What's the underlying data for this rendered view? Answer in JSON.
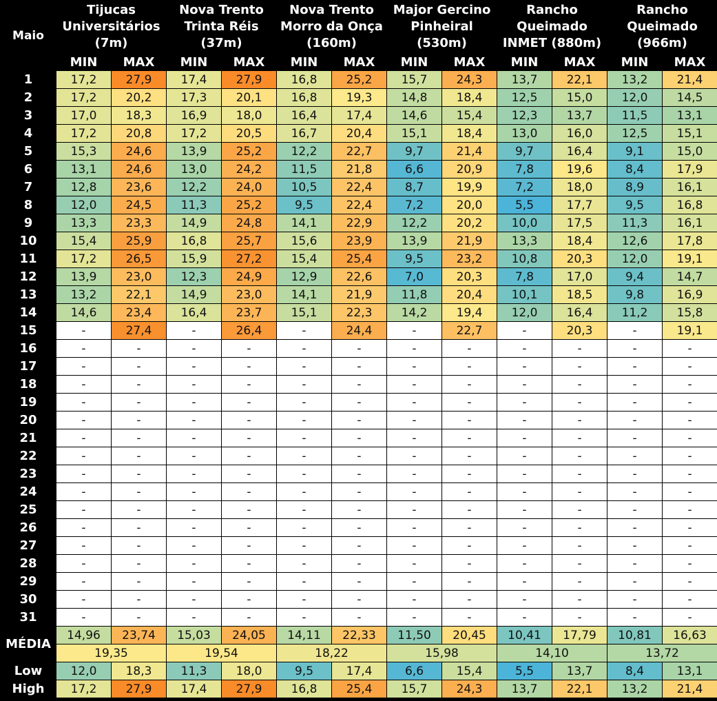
{
  "row_header_label": "Maio",
  "stations": [
    {
      "name_lines": [
        "Tijucas",
        "Universitários",
        "(7m)"
      ]
    },
    {
      "name_lines": [
        "Nova Trento",
        "Trinta Réis",
        "(37m)"
      ]
    },
    {
      "name_lines": [
        "Nova Trento",
        "Morro da Onça",
        "(160m)"
      ]
    },
    {
      "name_lines": [
        "Major Gercino",
        "Pinheiral",
        "(530m)"
      ]
    },
    {
      "name_lines": [
        "Rancho",
        "Queimado",
        "INMET (880m)"
      ]
    },
    {
      "name_lines": [
        "Rancho",
        "Queimado",
        "(966m)"
      ]
    }
  ],
  "min_label": "MIN",
  "max_label": "MAX",
  "days": [
    "1",
    "2",
    "3",
    "4",
    "5",
    "6",
    "7",
    "8",
    "9",
    "10",
    "11",
    "12",
    "13",
    "14",
    "15",
    "16",
    "17",
    "18",
    "19",
    "20",
    "21",
    "22",
    "23",
    "24",
    "25",
    "26",
    "27",
    "28",
    "29",
    "30",
    "31"
  ],
  "rows": [
    [
      "17,2",
      "27,9",
      "17,4",
      "27,9",
      "16,8",
      "25,2",
      "15,7",
      "24,3",
      "13,7",
      "22,1",
      "13,2",
      "21,4"
    ],
    [
      "17,2",
      "20,2",
      "17,3",
      "20,1",
      "16,8",
      "19,3",
      "14,8",
      "18,4",
      "12,5",
      "15,0",
      "12,0",
      "14,5"
    ],
    [
      "17,0",
      "18,3",
      "16,9",
      "18,0",
      "16,4",
      "17,4",
      "14,6",
      "15,4",
      "12,3",
      "13,7",
      "11,5",
      "13,1"
    ],
    [
      "17,2",
      "20,8",
      "17,2",
      "20,5",
      "16,7",
      "20,4",
      "15,1",
      "18,4",
      "13,0",
      "16,0",
      "12,5",
      "15,1"
    ],
    [
      "15,3",
      "24,6",
      "13,9",
      "25,2",
      "12,2",
      "22,7",
      "9,7",
      "21,4",
      "9,7",
      "16,4",
      "9,1",
      "15,0"
    ],
    [
      "13,1",
      "24,6",
      "13,0",
      "24,2",
      "11,5",
      "21,8",
      "6,6",
      "20,9",
      "7,8",
      "19,6",
      "8,4",
      "17,9"
    ],
    [
      "12,8",
      "23,6",
      "12,2",
      "24,0",
      "10,5",
      "22,4",
      "8,7",
      "19,9",
      "7,2",
      "18,0",
      "8,9",
      "16,1"
    ],
    [
      "12,0",
      "24,5",
      "11,3",
      "25,2",
      "9,5",
      "22,4",
      "7,2",
      "20,0",
      "5,5",
      "17,7",
      "9,5",
      "16,8"
    ],
    [
      "13,3",
      "23,3",
      "14,9",
      "24,8",
      "14,1",
      "22,9",
      "12,2",
      "20,2",
      "10,0",
      "17,5",
      "11,3",
      "16,1"
    ],
    [
      "15,4",
      "25,9",
      "16,8",
      "25,7",
      "15,6",
      "23,9",
      "13,9",
      "21,9",
      "13,3",
      "18,4",
      "12,6",
      "17,8"
    ],
    [
      "17,2",
      "26,5",
      "15,9",
      "27,2",
      "15,4",
      "25,4",
      "9,5",
      "23,2",
      "10,8",
      "20,3",
      "12,0",
      "19,1"
    ],
    [
      "13,9",
      "23,0",
      "12,3",
      "24,9",
      "12,9",
      "22,6",
      "7,0",
      "20,3",
      "7,8",
      "17,0",
      "9,4",
      "14,7"
    ],
    [
      "13,2",
      "22,1",
      "14,9",
      "23,0",
      "14,1",
      "21,9",
      "11,8",
      "20,4",
      "10,1",
      "18,5",
      "9,8",
      "16,9"
    ],
    [
      "14,6",
      "23,4",
      "16,4",
      "23,7",
      "15,1",
      "22,3",
      "14,2",
      "19,4",
      "12,0",
      "16,4",
      "11,2",
      "15,8"
    ],
    [
      "-",
      "27,4",
      "-",
      "26,4",
      "-",
      "24,4",
      "-",
      "22,7",
      "-",
      "20,3",
      "-",
      "19,1"
    ],
    [
      "-",
      "-",
      "-",
      "-",
      "-",
      "-",
      "-",
      "-",
      "-",
      "-",
      "-",
      "-"
    ],
    [
      "-",
      "-",
      "-",
      "-",
      "-",
      "-",
      "-",
      "-",
      "-",
      "-",
      "-",
      "-"
    ],
    [
      "-",
      "-",
      "-",
      "-",
      "-",
      "-",
      "-",
      "-",
      "-",
      "-",
      "-",
      "-"
    ],
    [
      "-",
      "-",
      "-",
      "-",
      "-",
      "-",
      "-",
      "-",
      "-",
      "-",
      "-",
      "-"
    ],
    [
      "-",
      "-",
      "-",
      "-",
      "-",
      "-",
      "-",
      "-",
      "-",
      "-",
      "-",
      "-"
    ],
    [
      "-",
      "-",
      "-",
      "-",
      "-",
      "-",
      "-",
      "-",
      "-",
      "-",
      "-",
      "-"
    ],
    [
      "-",
      "-",
      "-",
      "-",
      "-",
      "-",
      "-",
      "-",
      "-",
      "-",
      "-",
      "-"
    ],
    [
      "-",
      "-",
      "-",
      "-",
      "-",
      "-",
      "-",
      "-",
      "-",
      "-",
      "-",
      "-"
    ],
    [
      "-",
      "-",
      "-",
      "-",
      "-",
      "-",
      "-",
      "-",
      "-",
      "-",
      "-",
      "-"
    ],
    [
      "-",
      "-",
      "-",
      "-",
      "-",
      "-",
      "-",
      "-",
      "-",
      "-",
      "-",
      "-"
    ],
    [
      "-",
      "-",
      "-",
      "-",
      "-",
      "-",
      "-",
      "-",
      "-",
      "-",
      "-",
      "-"
    ],
    [
      "-",
      "-",
      "-",
      "-",
      "-",
      "-",
      "-",
      "-",
      "-",
      "-",
      "-",
      "-"
    ],
    [
      "-",
      "-",
      "-",
      "-",
      "-",
      "-",
      "-",
      "-",
      "-",
      "-",
      "-",
      "-"
    ],
    [
      "-",
      "-",
      "-",
      "-",
      "-",
      "-",
      "-",
      "-",
      "-",
      "-",
      "-",
      "-"
    ],
    [
      "-",
      "-",
      "-",
      "-",
      "-",
      "-",
      "-",
      "-",
      "-",
      "-",
      "-",
      "-"
    ],
    [
      "-",
      "-",
      "-",
      "-",
      "-",
      "-",
      "-",
      "-",
      "-",
      "-",
      "-",
      "-"
    ]
  ],
  "media_label": "MÉDIA",
  "media_row": [
    "14,96",
    "23,74",
    "15,03",
    "24,05",
    "14,11",
    "22,33",
    "11,50",
    "20,45",
    "10,41",
    "17,79",
    "10,81",
    "16,63"
  ],
  "media_combined": [
    "19,35",
    "19,54",
    "18,22",
    "15,98",
    "14,10",
    "13,72"
  ],
  "low_label": "Low",
  "low_row": [
    "12,0",
    "18,3",
    "11,3",
    "18,0",
    "9,5",
    "17,4",
    "6,6",
    "15,4",
    "5,5",
    "13,7",
    "8,4",
    "13,1"
  ],
  "high_label": "High",
  "high_row": [
    "17,2",
    "27,9",
    "17,4",
    "27,9",
    "16,8",
    "25,4",
    "15,7",
    "24,3",
    "13,7",
    "22,1",
    "13,2",
    "21,4"
  ],
  "color_scale": {
    "stops": [
      {
        "t": 5.5,
        "color": "#4cb4d8"
      },
      {
        "t": 9.5,
        "color": "#6cc0c8"
      },
      {
        "t": 13.0,
        "color": "#a8d4a8"
      },
      {
        "t": 16.5,
        "color": "#dce39a"
      },
      {
        "t": 19.5,
        "color": "#fde98a"
      },
      {
        "t": 23.0,
        "color": "#fcbc5e"
      },
      {
        "t": 28.0,
        "color": "#f98a28"
      }
    ],
    "empty_color": "#ffffff"
  }
}
